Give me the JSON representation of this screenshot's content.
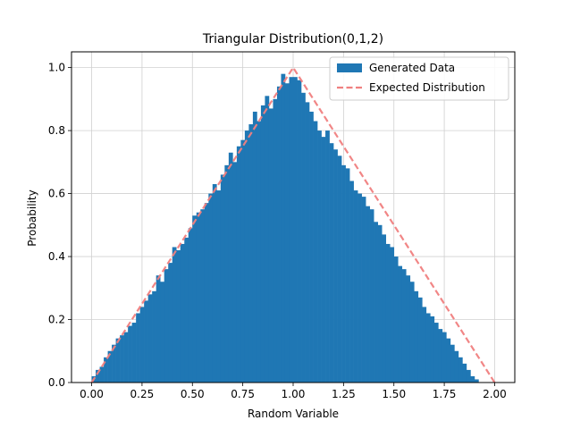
{
  "chart_data": {
    "type": "bar",
    "title": "Triangular Distribution(0,1,2)",
    "xlabel": "Random Variable",
    "ylabel": "Probability",
    "xlim": [
      -0.1,
      2.1
    ],
    "ylim": [
      0.0,
      1.05
    ],
    "grid": true,
    "legend_position": "top-right",
    "x_ticks": [
      "0.00",
      "0.25",
      "0.50",
      "0.75",
      "1.00",
      "1.25",
      "1.50",
      "1.75",
      "2.00"
    ],
    "y_ticks": [
      "0.0",
      "0.2",
      "0.4",
      "0.6",
      "0.8",
      "1.0"
    ],
    "bin_width": 0.02,
    "bin_start": 0.0,
    "values": [
      0.02,
      0.04,
      0.05,
      0.08,
      0.1,
      0.12,
      0.14,
      0.15,
      0.16,
      0.18,
      0.19,
      0.22,
      0.24,
      0.26,
      0.28,
      0.29,
      0.34,
      0.32,
      0.36,
      0.38,
      0.43,
      0.42,
      0.44,
      0.46,
      0.49,
      0.53,
      0.54,
      0.55,
      0.57,
      0.6,
      0.63,
      0.61,
      0.66,
      0.69,
      0.73,
      0.7,
      0.75,
      0.77,
      0.8,
      0.82,
      0.86,
      0.83,
      0.88,
      0.91,
      0.87,
      0.9,
      0.94,
      0.98,
      0.95,
      0.97,
      0.97,
      0.96,
      0.92,
      0.89,
      0.86,
      0.83,
      0.8,
      0.78,
      0.8,
      0.76,
      0.74,
      0.72,
      0.69,
      0.68,
      0.64,
      0.61,
      0.6,
      0.59,
      0.56,
      0.55,
      0.51,
      0.5,
      0.47,
      0.44,
      0.43,
      0.4,
      0.37,
      0.36,
      0.34,
      0.32,
      0.29,
      0.27,
      0.24,
      0.22,
      0.21,
      0.19,
      0.17,
      0.16,
      0.14,
      0.12,
      0.1,
      0.08,
      0.06,
      0.04,
      0.02,
      0.01,
      0.0,
      0.0,
      0.0,
      0.0
    ],
    "expected_line": {
      "x": [
        0,
        1,
        2
      ],
      "y": [
        0,
        1,
        0
      ]
    },
    "series": [
      {
        "name": "Generated Data",
        "color": "#1f77b4"
      },
      {
        "name": "Expected Distribution",
        "color": "#f08080"
      }
    ]
  }
}
